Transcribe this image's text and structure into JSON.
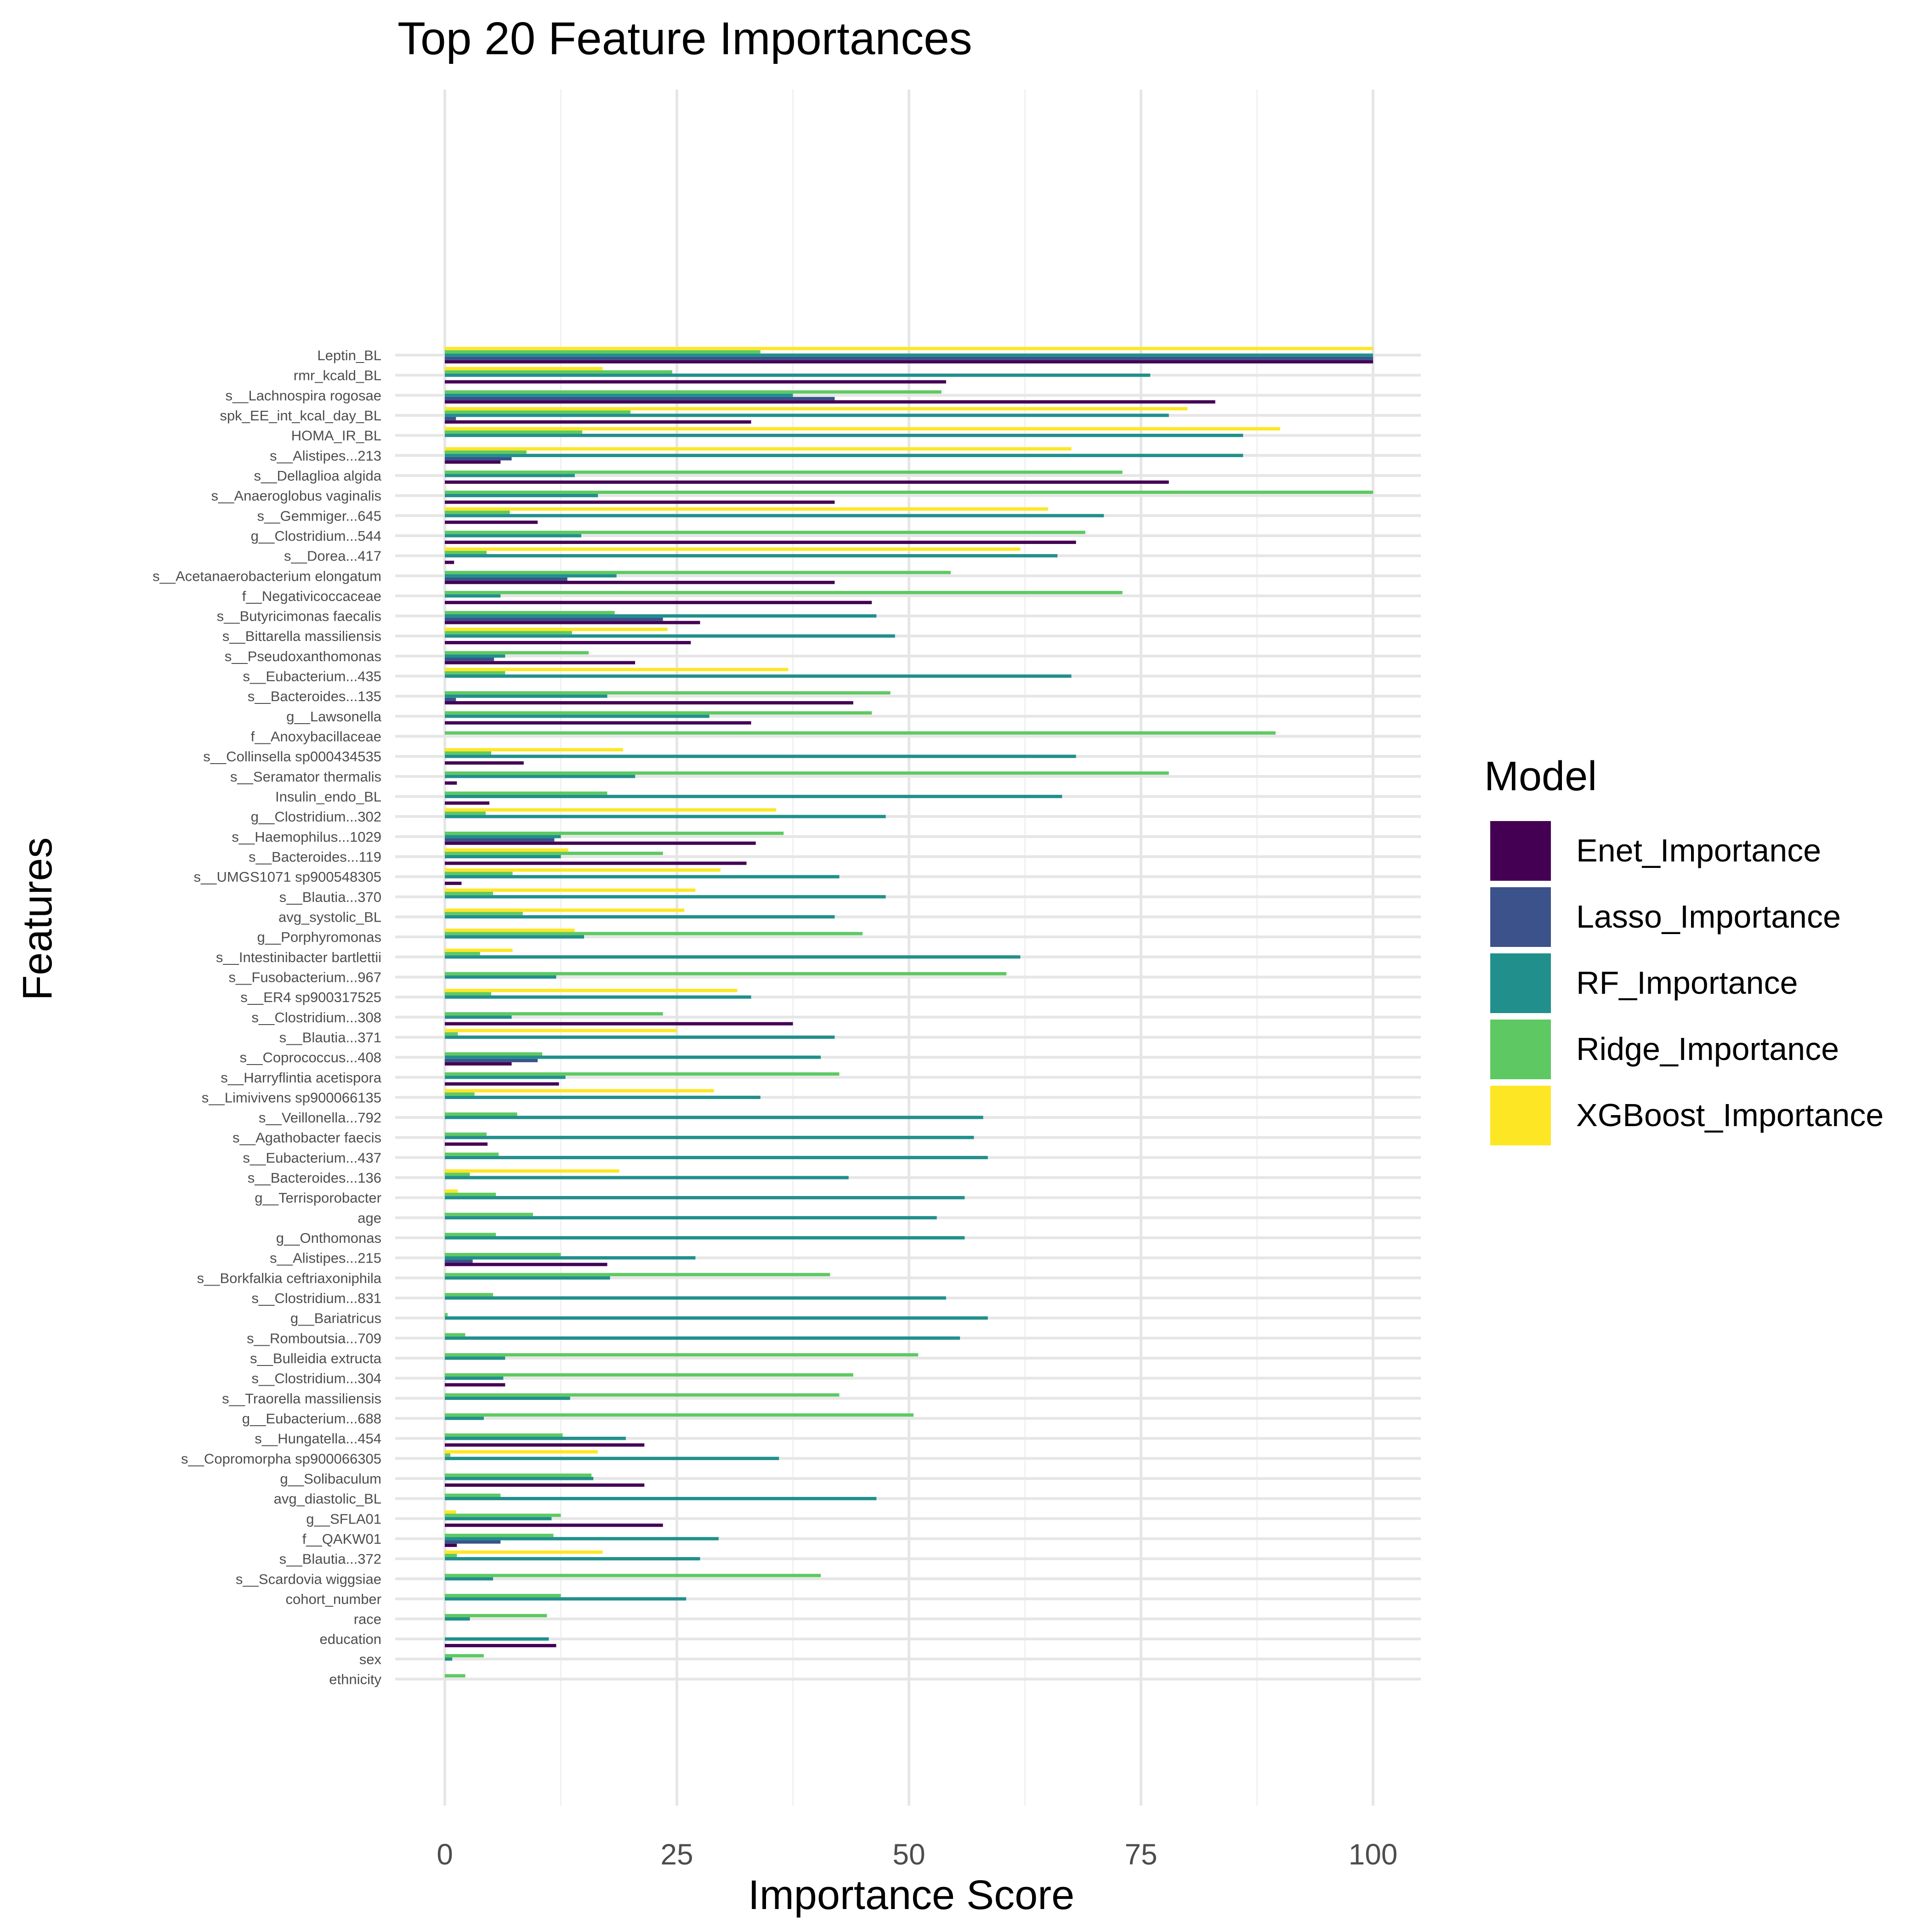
{
  "chart_data": {
    "type": "bar",
    "orientation": "horizontal",
    "title": "Top 20 Feature Importances",
    "xlabel": "Importance Score",
    "ylabel": "Features",
    "xlim": [
      0,
      100
    ],
    "x_ticks": [
      0,
      25,
      50,
      75,
      100
    ],
    "grid": true,
    "legend_title": "Model",
    "legend_position": "right",
    "categories": [
      "Leptin_BL",
      "rmr_kcald_BL",
      "s__Lachnospira rogosae",
      "spk_EE_int_kcal_day_BL",
      "HOMA_IR_BL",
      "s__Alistipes...213",
      "s__Dellaglioa algida",
      "s__Anaeroglobus vaginalis",
      "s__Gemmiger...645",
      "g__Clostridium...544",
      "s__Dorea...417",
      "s__Acetanaerobacterium elongatum",
      "f__Negativicoccaceae",
      "s__Butyricimonas faecalis",
      "s__Bittarella massiliensis",
      "s__Pseudoxanthomonas",
      "s__Eubacterium...435",
      "s__Bacteroides...135",
      "g__Lawsonella",
      "f__Anoxybacillaceae",
      "s__Collinsella sp000434535",
      "s__Seramator thermalis",
      "Insulin_endo_BL",
      "g__Clostridium...302",
      "s__Haemophilus...1029",
      "s__Bacteroides...119",
      "s__UMGS1071 sp900548305",
      "s__Blautia...370",
      "avg_systolic_BL",
      "g__Porphyromonas",
      "s__Intestinibacter bartlettii",
      "s__Fusobacterium...967",
      "s__ER4 sp900317525",
      "s__Clostridium...308",
      "s__Blautia...371",
      "s__Coprococcus...408",
      "s__Harryflintia acetispora",
      "s__Limivivens sp900066135",
      "s__Veillonella...792",
      "s__Agathobacter faecis",
      "s__Eubacterium...437",
      "s__Bacteroides...136",
      "g__Terrisporobacter",
      "age",
      "g__Onthomonas",
      "s__Alistipes...215",
      "s__Borkfalkia ceftriaxoniphila",
      "s__Clostridium...831",
      "g__Bariatricus",
      "s__Romboutsia...709",
      "s__Bulleidia extructa",
      "s__Clostridium...304",
      "s__Traorella massiliensis",
      "g__Eubacterium...688",
      "s__Hungatella...454",
      "s__Copromorpha sp900066305",
      "g__Solibaculum",
      "avg_diastolic_BL",
      "g__SFLA01",
      "f__QAKW01",
      "s__Blautia...372",
      "s__Scardovia wiggsiae",
      "cohort_number",
      "race",
      "education",
      "sex",
      "ethnicity"
    ],
    "series": [
      {
        "name": "Enet_Importance",
        "color": "#440154",
        "values": [
          100,
          54,
          83,
          33,
          0,
          6,
          78,
          42,
          10,
          68,
          1,
          42,
          46,
          27.5,
          26.5,
          20.5,
          0,
          44,
          33,
          0,
          8.5,
          1.3,
          4.8,
          0,
          33.5,
          32.5,
          1.8,
          0,
          0,
          0,
          0,
          0,
          0,
          37.5,
          0,
          7.2,
          12.3,
          0,
          0,
          4.6,
          0,
          0,
          0,
          0,
          0,
          17.5,
          0,
          0,
          0,
          0,
          0,
          6.5,
          0,
          0,
          21.5,
          0,
          21.5,
          0,
          23.5,
          1.3,
          0,
          0,
          0,
          0,
          12,
          0,
          0
        ]
      },
      {
        "name": "Lasso_Importance",
        "color": "#3b528b",
        "values": [
          100,
          0,
          42,
          1.2,
          0,
          7.2,
          0,
          0,
          0,
          0,
          0,
          13.2,
          0,
          23.5,
          0,
          5.3,
          0,
          1.2,
          0,
          0,
          0,
          0,
          0,
          0,
          11.8,
          0,
          0,
          0,
          0,
          0,
          0,
          0,
          0,
          0,
          0,
          10,
          0,
          0,
          0,
          0,
          0,
          0,
          0,
          0,
          0,
          3,
          0,
          0,
          0,
          0,
          0,
          0,
          0,
          0,
          0,
          0,
          0,
          0,
          0,
          6,
          0,
          0,
          0,
          0,
          0,
          0,
          0
        ]
      },
      {
        "name": "RF_Importance",
        "color": "#21908c",
        "values": [
          100,
          76,
          37.5,
          78,
          86,
          86,
          14,
          16.5,
          71,
          14.7,
          66,
          18.5,
          6,
          46.5,
          48.5,
          6.5,
          67.5,
          17.5,
          28.5,
          0,
          68,
          20.5,
          66.5,
          47.5,
          12.5,
          12.5,
          42.5,
          47.5,
          42,
          15,
          62,
          12,
          33,
          7.2,
          42,
          40.5,
          13,
          34,
          58,
          57,
          58.5,
          43.5,
          56,
          53,
          56,
          27,
          17.8,
          54,
          58.5,
          55.5,
          6.5,
          6.3,
          13.5,
          4.2,
          19.5,
          36,
          16,
          46.5,
          11.5,
          29.5,
          27.5,
          5.2,
          26,
          2.7,
          11.2,
          0.8,
          0
        ]
      },
      {
        "name": "Ridge_Importance",
        "color": "#5ec962",
        "values": [
          34,
          24.5,
          53.5,
          20,
          14.8,
          8.8,
          73,
          100,
          7,
          69,
          4.5,
          54.5,
          73,
          18.3,
          13.7,
          15.5,
          6.5,
          48,
          46,
          89.5,
          5,
          78,
          17.5,
          4.4,
          36.5,
          23.5,
          7.3,
          5.2,
          8.4,
          45,
          3.8,
          60.5,
          5,
          23.5,
          1.4,
          10.5,
          42.5,
          3.2,
          7.8,
          4.5,
          5.8,
          2.7,
          5.5,
          9.5,
          5.5,
          12.5,
          41.5,
          5.2,
          0.3,
          2.2,
          51,
          44,
          42.5,
          50.5,
          12.7,
          0.6,
          15.8,
          6,
          12.5,
          11.7,
          1.3,
          40.5,
          12.5,
          11,
          0,
          4.2,
          2.2
        ]
      },
      {
        "name": "XGBoost_Importance",
        "color": "#fde725",
        "values": [
          100,
          17,
          0,
          80,
          90,
          67.5,
          0,
          0,
          65,
          0,
          62,
          0,
          0,
          0,
          24,
          0,
          37,
          0,
          0,
          0,
          19.2,
          0,
          0,
          35.7,
          0,
          13.3,
          29.7,
          27,
          25.8,
          14,
          7.3,
          0,
          31.5,
          0,
          25,
          0,
          0,
          29,
          0,
          0,
          0,
          18.8,
          1.4,
          0,
          0,
          0,
          0,
          0,
          0,
          0,
          0,
          0,
          0,
          0,
          0,
          16.5,
          0,
          0,
          1.2,
          0,
          17,
          0,
          0,
          0,
          0,
          0,
          0
        ]
      }
    ]
  }
}
